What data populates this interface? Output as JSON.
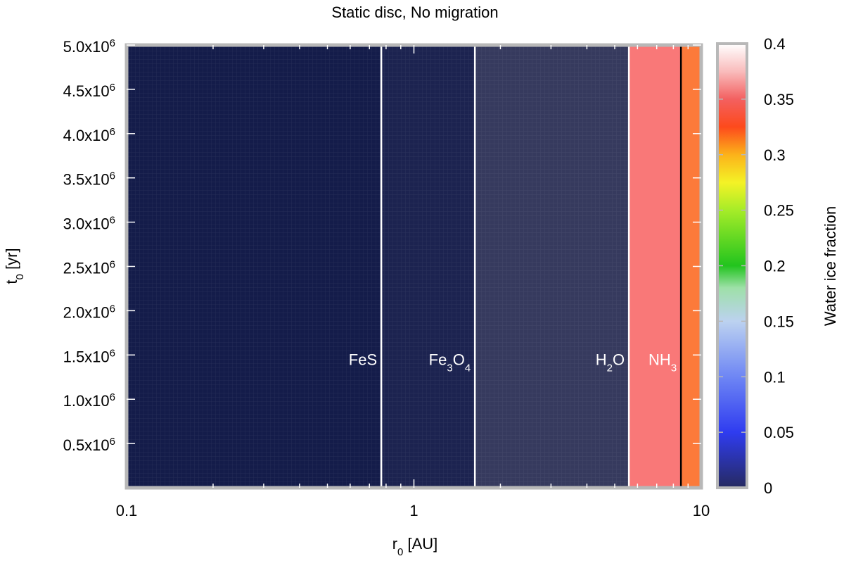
{
  "chart_data": {
    "type": "heatmap",
    "title": "Static disc, No migration",
    "xlabel": {
      "base": "r",
      "sub": "0",
      "rest": " [AU]"
    },
    "ylabel": {
      "base": "t",
      "sub": "0",
      "rest": " [yr]"
    },
    "x_scale": "log",
    "xlim": [
      0.1,
      10
    ],
    "ylim": [
      0,
      5000000
    ],
    "x_ticks": [
      {
        "value": 0.1,
        "label": "0.1"
      },
      {
        "value": 1,
        "label": "1"
      },
      {
        "value": 10,
        "label": "10"
      }
    ],
    "y_ticks": [
      {
        "value": 500000,
        "mant": "0.5x10",
        "exp": "6"
      },
      {
        "value": 1000000,
        "mant": "1.0x10",
        "exp": "6"
      },
      {
        "value": 1500000,
        "mant": "1.5x10",
        "exp": "6"
      },
      {
        "value": 2000000,
        "mant": "2.0x10",
        "exp": "6"
      },
      {
        "value": 2500000,
        "mant": "2.5x10",
        "exp": "6"
      },
      {
        "value": 3000000,
        "mant": "3.0x10",
        "exp": "6"
      },
      {
        "value": 3500000,
        "mant": "3.5x10",
        "exp": "6"
      },
      {
        "value": 4000000,
        "mant": "4.0x10",
        "exp": "6"
      },
      {
        "value": 4500000,
        "mant": "4.5x10",
        "exp": "6"
      },
      {
        "value": 5000000,
        "mant": "5.0x10",
        "exp": "6"
      }
    ],
    "regions": [
      {
        "r_min": 0.1,
        "r_max": 0.77,
        "water_ice_fraction": 0,
        "color": "#141c4a"
      },
      {
        "r_min": 0.77,
        "r_max": 1.63,
        "water_ice_fraction": 0,
        "color": "#1c2350"
      },
      {
        "r_min": 1.63,
        "r_max": 5.6,
        "water_ice_fraction": 0,
        "color": "#363a5e"
      },
      {
        "r_min": 5.6,
        "r_max": 8.5,
        "water_ice_fraction": 0.36,
        "color": "#f97878"
      },
      {
        "r_min": 8.5,
        "r_max": 10,
        "water_ice_fraction": 0.32,
        "color": "#fc7a3a"
      }
    ],
    "ice_lines": [
      {
        "r": 0.77,
        "color": "#ffffff",
        "label": [
          {
            "t": "FeS",
            "sub": false
          }
        ]
      },
      {
        "r": 1.63,
        "color": "#ffffff",
        "label": [
          {
            "t": "Fe",
            "sub": false
          },
          {
            "t": "3",
            "sub": true
          },
          {
            "t": "O",
            "sub": false
          },
          {
            "t": "4",
            "sub": true
          }
        ]
      },
      {
        "r": 5.6,
        "color": "#ffffff",
        "label": [
          {
            "t": "H",
            "sub": false
          },
          {
            "t": "2",
            "sub": true
          },
          {
            "t": "O",
            "sub": false
          }
        ]
      },
      {
        "r": 8.5,
        "color": "#000000",
        "label": [
          {
            "t": "NH",
            "sub": false
          },
          {
            "t": "3",
            "sub": true
          }
        ]
      }
    ],
    "label_t0": 1450000,
    "colorbar": {
      "label": "Water ice fraction",
      "range": [
        0,
        0.4
      ],
      "tick_labels": [
        "0",
        "0.05",
        "0.1",
        "0.15",
        "0.2",
        "0.25",
        "0.3",
        "0.35",
        "0.4"
      ],
      "stops": [
        {
          "value": 0,
          "color": "#262a60"
        },
        {
          "value": 0.05,
          "color": "#2f3cf0"
        },
        {
          "value": 0.1,
          "color": "#6e86f4"
        },
        {
          "value": 0.15,
          "color": "#bcd2f0"
        },
        {
          "value": 0.18,
          "color": "#9ee0a8"
        },
        {
          "value": 0.2,
          "color": "#22c41e"
        },
        {
          "value": 0.25,
          "color": "#a6ec28"
        },
        {
          "value": 0.275,
          "color": "#f4f226"
        },
        {
          "value": 0.3,
          "color": "#fcb21a"
        },
        {
          "value": 0.325,
          "color": "#fd4a1c"
        },
        {
          "value": 0.35,
          "color": "#f36060"
        },
        {
          "value": 0.375,
          "color": "#f9bcbc"
        },
        {
          "value": 0.4,
          "color": "#ffffff"
        }
      ]
    },
    "frame_color": "#b8b8b8"
  }
}
